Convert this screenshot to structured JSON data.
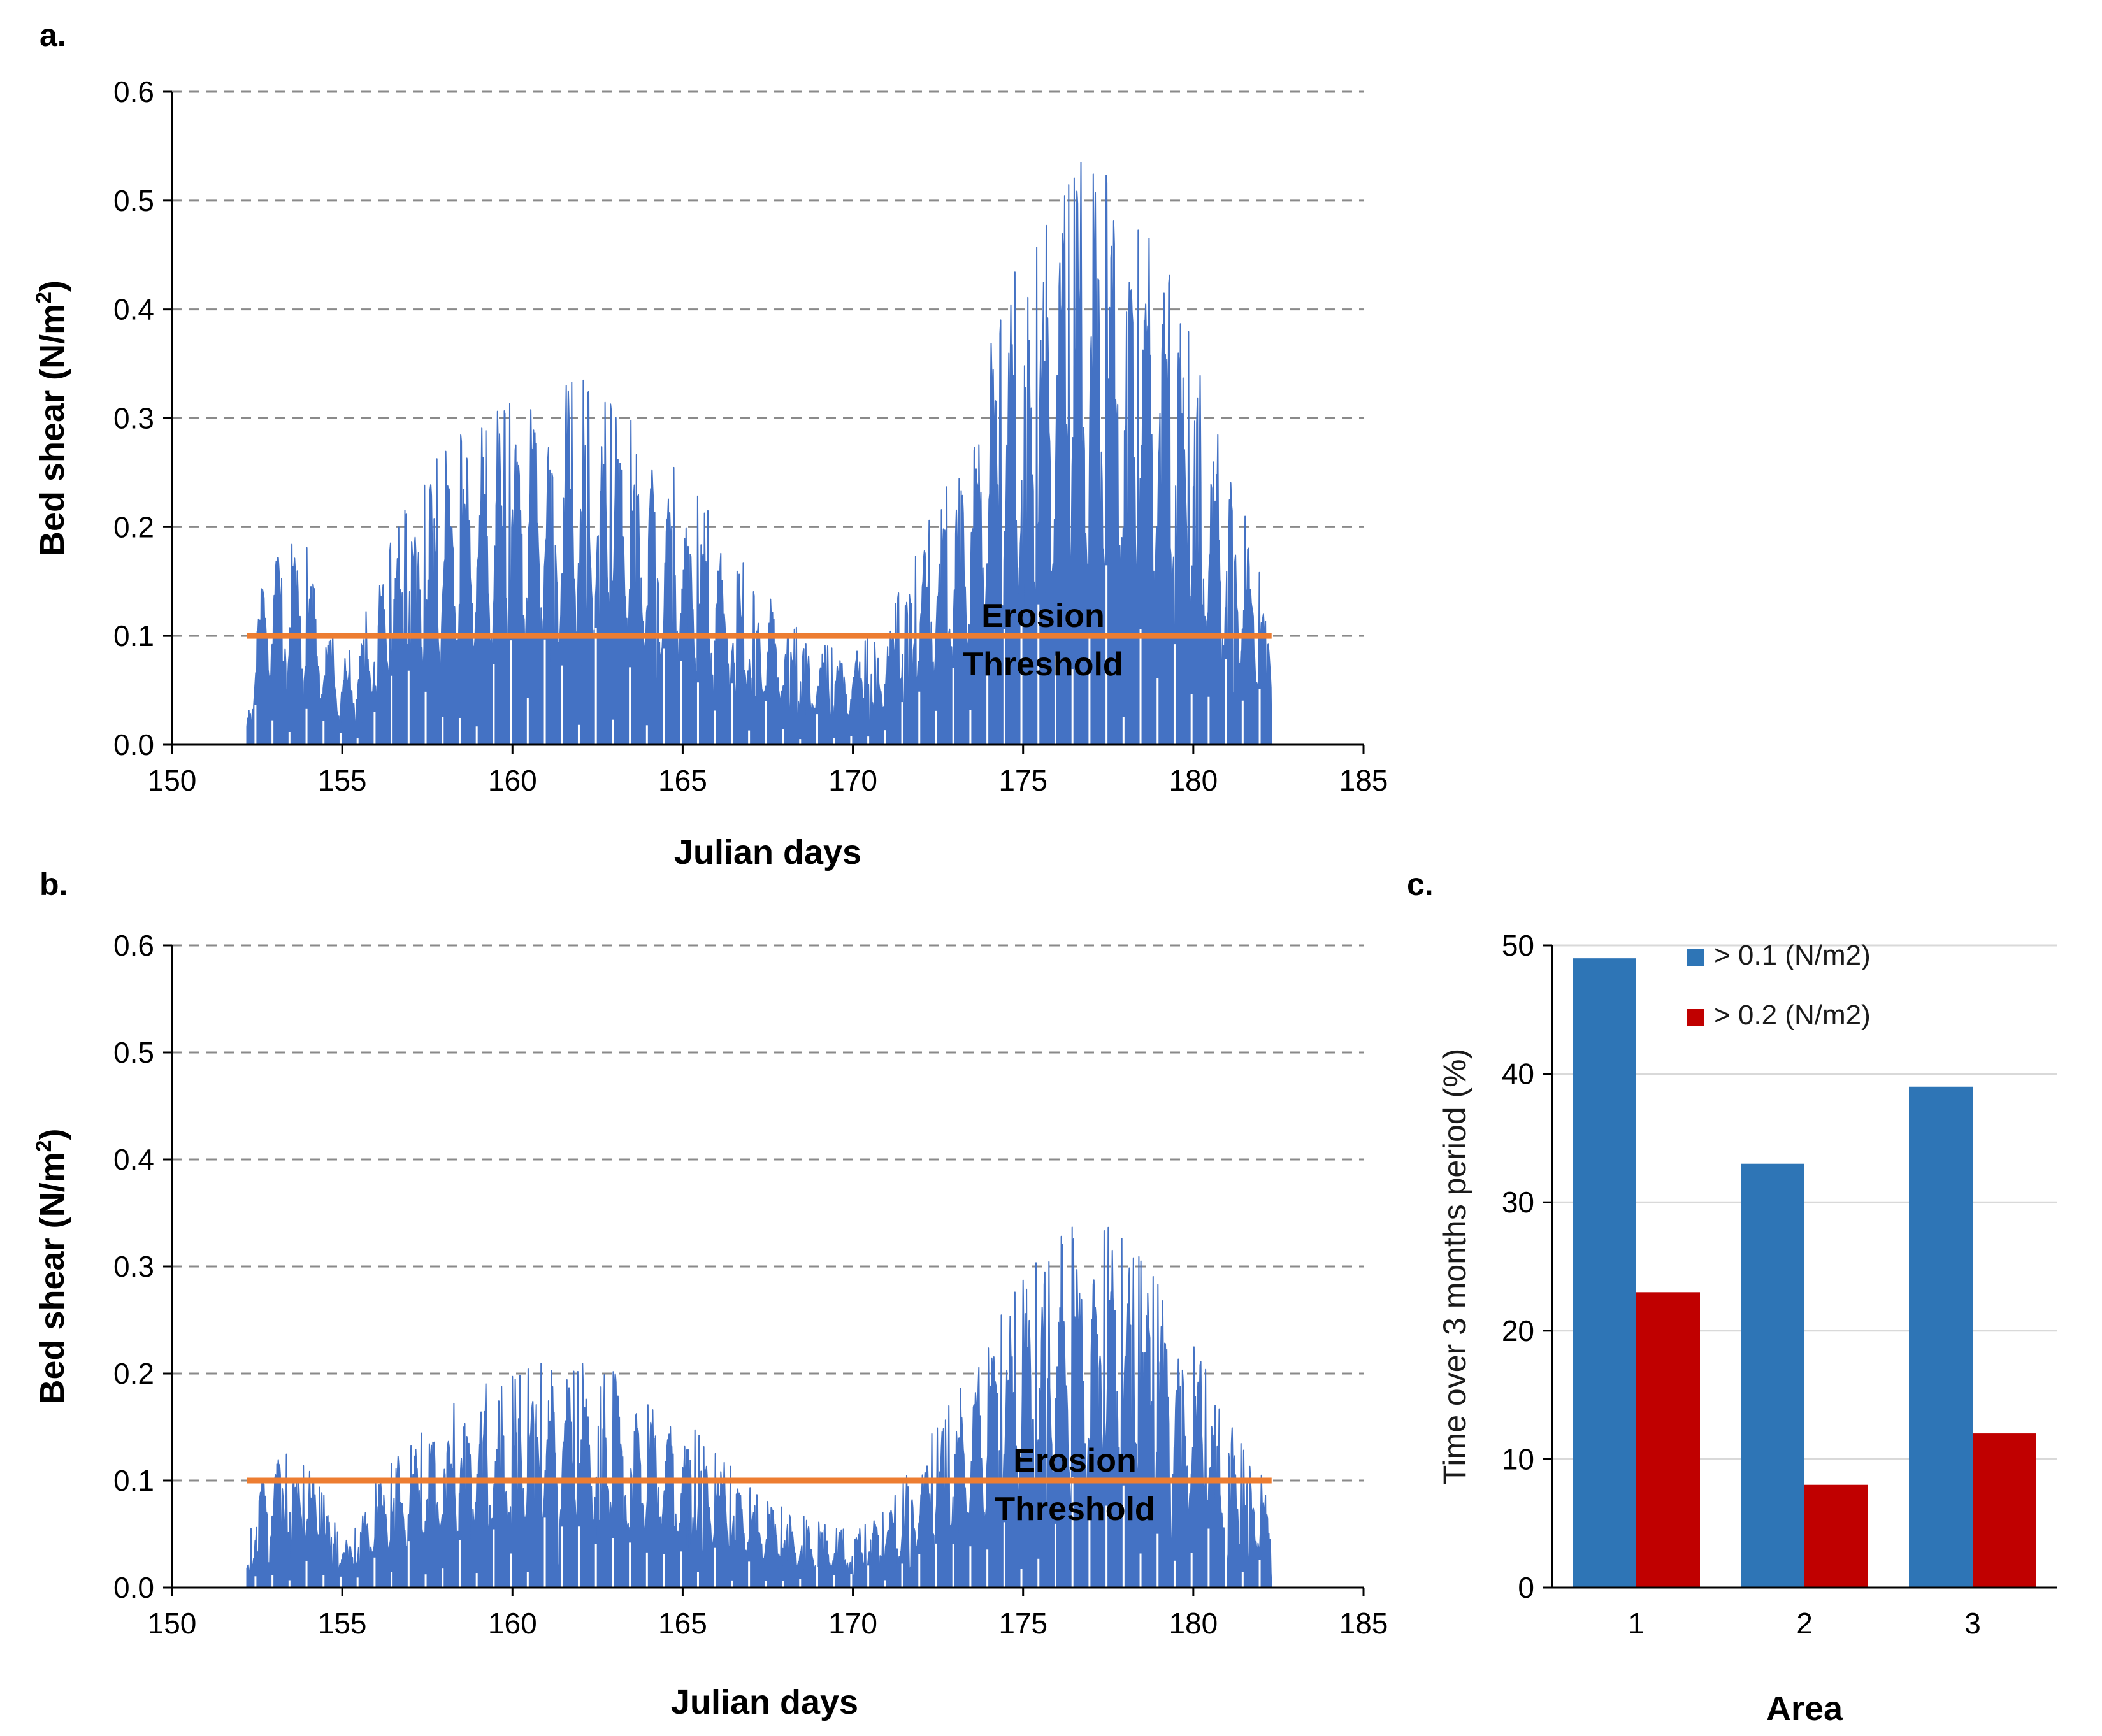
{
  "chart_data": [
    {
      "panel": "a.",
      "type": "area",
      "title": "",
      "xlabel": "Julian days",
      "ylabel": "Bed shear (N/m",
      "ylabel_sup": "2",
      "ylabel_close": ")",
      "xlim": [
        150,
        185
      ],
      "ylim": [
        0.0,
        0.6
      ],
      "xticks": [
        "150",
        "155",
        "160",
        "165",
        "170",
        "175",
        "180",
        "185"
      ],
      "yticks": [
        "0.0",
        "0.1",
        "0.2",
        "0.3",
        "0.4",
        "0.5",
        "0.6"
      ],
      "grid": true,
      "series_color": "#4472C4",
      "threshold": {
        "value": 0.1,
        "label_line1": "Erosion",
        "label_line2": "Threshold",
        "color": "#ED7D31",
        "x_start": 152.2,
        "x_end": 182.3
      },
      "envelope": {
        "x": [
          152.2,
          152.5,
          153.0,
          153.5,
          154.0,
          154.5,
          155.0,
          155.5,
          156.0,
          157.0,
          158.0,
          159.0,
          160.0,
          161.0,
          162.0,
          163.0,
          164.0,
          165.0,
          166.0,
          167.0,
          168.0,
          169.0,
          170.0,
          171.0,
          172.0,
          173.0,
          174.0,
          175.0,
          176.0,
          177.0,
          178.0,
          179.0,
          180.0,
          181.0,
          182.0,
          182.3
        ],
        "y": [
          0.02,
          0.15,
          0.2,
          0.18,
          0.17,
          0.12,
          0.07,
          0.1,
          0.15,
          0.22,
          0.26,
          0.28,
          0.3,
          0.31,
          0.32,
          0.3,
          0.27,
          0.24,
          0.19,
          0.15,
          0.11,
          0.09,
          0.08,
          0.11,
          0.18,
          0.25,
          0.35,
          0.43,
          0.48,
          0.52,
          0.48,
          0.45,
          0.35,
          0.25,
          0.15,
          0.1
        ]
      }
    },
    {
      "panel": "b.",
      "type": "area",
      "title": "",
      "xlabel": "Julian days",
      "ylabel": "Bed shear (N/m",
      "ylabel_sup": "2",
      "ylabel_close": ")",
      "xlim": [
        150,
        185
      ],
      "ylim": [
        0.0,
        0.6
      ],
      "xticks": [
        "150",
        "155",
        "160",
        "165",
        "170",
        "175",
        "180",
        "185"
      ],
      "yticks": [
        "0.0",
        "0.1",
        "0.2",
        "0.3",
        "0.4",
        "0.5",
        "0.6"
      ],
      "grid": true,
      "series_color": "#4472C4",
      "threshold": {
        "value": 0.1,
        "label_line1": "Erosion",
        "label_line2": "Threshold",
        "color": "#ED7D31",
        "x_start": 152.2,
        "x_end": 182.3
      },
      "envelope": {
        "x": [
          152.2,
          152.5,
          153.0,
          153.5,
          154.0,
          154.5,
          155.0,
          155.5,
          156.0,
          157.0,
          158.0,
          159.0,
          160.0,
          161.0,
          162.0,
          163.0,
          164.0,
          165.0,
          166.0,
          167.0,
          168.0,
          169.0,
          170.0,
          171.0,
          172.0,
          173.0,
          174.0,
          175.0,
          176.0,
          177.0,
          178.0,
          179.0,
          180.0,
          181.0,
          182.0,
          182.3
        ],
        "y": [
          0.02,
          0.1,
          0.13,
          0.12,
          0.11,
          0.08,
          0.04,
          0.06,
          0.1,
          0.13,
          0.16,
          0.18,
          0.19,
          0.2,
          0.2,
          0.19,
          0.17,
          0.15,
          0.12,
          0.09,
          0.07,
          0.06,
          0.05,
          0.07,
          0.12,
          0.17,
          0.22,
          0.28,
          0.31,
          0.33,
          0.31,
          0.28,
          0.22,
          0.15,
          0.1,
          0.07
        ]
      }
    },
    {
      "panel": "c.",
      "type": "bar",
      "title": "",
      "xlabel": "Area",
      "ylabel": "Time over 3 months period (%)",
      "categories": [
        "1",
        "2",
        "3"
      ],
      "ylim": [
        0,
        50
      ],
      "yticks": [
        "0",
        "10",
        "20",
        "30",
        "40",
        "50"
      ],
      "grid": true,
      "legend_position": "top-left",
      "series": [
        {
          "name": "> 0.1 (N/m2)",
          "values": [
            49,
            33,
            39
          ],
          "color": "#2E75B6"
        },
        {
          "name": "> 0.2 (N/m2)",
          "values": [
            23,
            8,
            12
          ],
          "color": "#C00000"
        }
      ]
    }
  ]
}
